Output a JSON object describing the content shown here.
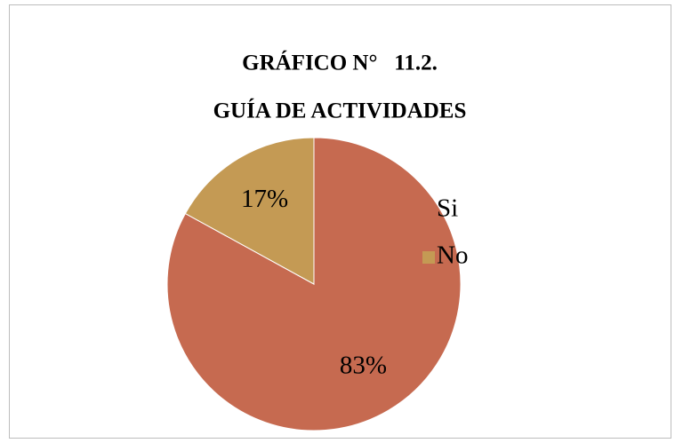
{
  "chart_data": {
    "type": "pie",
    "title": "GRÁFICO N°   11.2.",
    "subtitle": "GUÍA DE ACTIVIDADES",
    "categories": [
      "Si",
      "No"
    ],
    "values": [
      83,
      17
    ],
    "value_labels": [
      "83%",
      "17%"
    ],
    "colors": [
      "#c66a50",
      "#c49a54"
    ],
    "legend": "right"
  }
}
